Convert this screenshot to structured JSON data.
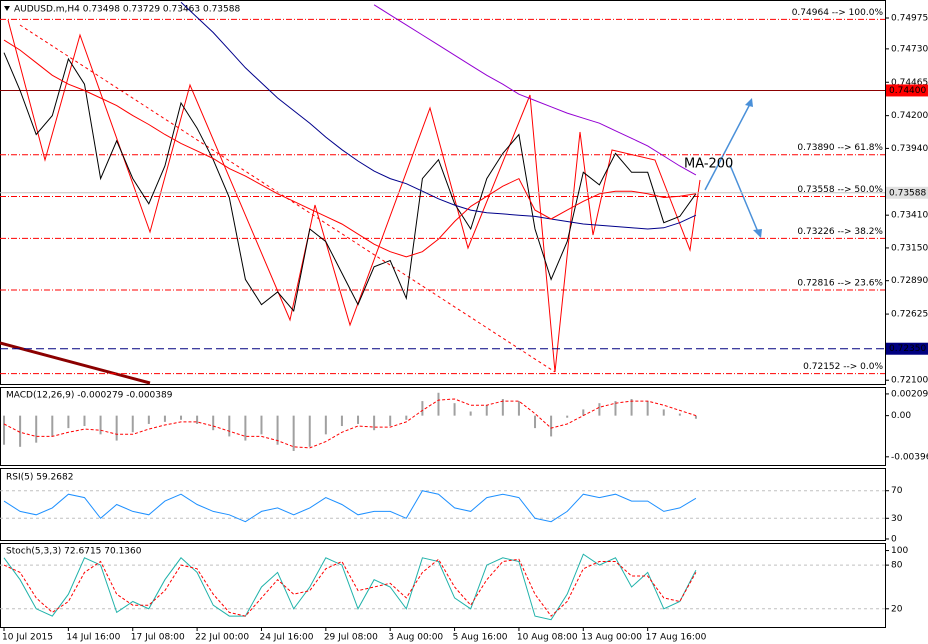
{
  "chart_data": [
    {
      "type": "line",
      "title": "AUDUSD.m,H4  0.73498 0.73729 0.73463 0.73588",
      "x": [
        0,
        4,
        8,
        12,
        16,
        20,
        24,
        28,
        32,
        36,
        40,
        44,
        48,
        52,
        56,
        60,
        64,
        68,
        72,
        76,
        80,
        84,
        88,
        92,
        96,
        100,
        104,
        108,
        112,
        116,
        120,
        124,
        128,
        132,
        136,
        140,
        144,
        148,
        152,
        156,
        160,
        164,
        168,
        172
      ],
      "xlim": [
        -1,
        219
      ],
      "xticks": [
        {
          "value": 0,
          "label": "10 Jul 2015"
        },
        {
          "value": 16,
          "label": "14 Jul 16:00"
        },
        {
          "value": 32,
          "label": "17 Jul 08:00"
        },
        {
          "value": 48,
          "label": "22 Jul 00:00"
        },
        {
          "value": 64,
          "label": "24 Jul 16:00"
        },
        {
          "value": 80,
          "label": "29 Jul 08:00"
        },
        {
          "value": 96,
          "label": "3 Aug 00:00"
        },
        {
          "value": 112,
          "label": "5 Aug 16:00"
        },
        {
          "value": 128,
          "label": "10 Aug 08:00"
        },
        {
          "value": 144,
          "label": "13 Aug 00:00"
        },
        {
          "value": 160,
          "label": "17 Aug 16:00"
        }
      ],
      "ylim": [
        0.7207,
        0.7511
      ],
      "yticks": [
        0.74975,
        {
          "value": 0.7473,
          "label": "0.74730"
        },
        0.74465,
        {
          "value": 0.742,
          "label": "0.74200"
        },
        {
          "value": 0.7394,
          "label": "0.73940"
        },
        {
          "value": 0.7341,
          "label": "0.73410"
        },
        {
          "value": 0.7315,
          "label": "0.73150"
        },
        {
          "value": 0.7289,
          "label": "0.72890"
        },
        0.72625,
        {
          "value": 0.721,
          "label": "0.72100"
        }
      ],
      "series": [
        {
          "color": "#000000",
          "values": [
            0.747,
            0.744,
            0.7405,
            0.742,
            0.7465,
            0.7445,
            0.737,
            0.74,
            0.737,
            0.735,
            0.738,
            0.743,
            0.741,
            0.7385,
            0.7355,
            0.729,
            0.727,
            0.728,
            0.7265,
            0.733,
            0.732,
            0.7295,
            0.727,
            0.73,
            0.7305,
            0.7275,
            0.737,
            0.7385,
            0.735,
            0.733,
            0.737,
            0.739,
            0.7405,
            0.733,
            0.729,
            0.732,
            0.7375,
            0.7365,
            0.739,
            0.7375,
            0.7375,
            0.7335,
            0.734,
            0.7358
          ]
        },
        {
          "color": "#9400d3",
          "values": [
            null,
            null,
            null,
            null,
            null,
            null,
            null,
            null,
            null,
            null,
            null,
            null,
            null,
            null,
            null,
            null,
            null,
            null,
            null,
            null,
            null,
            null,
            null,
            0.7508,
            0.75,
            0.7492,
            0.7484,
            0.7476,
            0.7468,
            0.746,
            0.7452,
            0.7445,
            0.7437,
            0.7432,
            0.7427,
            0.7422,
            0.7418,
            0.7414,
            0.7408,
            0.7402,
            0.7396,
            0.7388,
            0.738,
            0.7373
          ]
        },
        {
          "color": "#00008b",
          "values": [
            null,
            null,
            null,
            null,
            null,
            null,
            null,
            null,
            null,
            null,
            null,
            0.751,
            0.7498,
            0.7486,
            0.7472,
            0.7458,
            0.7446,
            0.7434,
            0.7424,
            0.7414,
            0.7403,
            0.7393,
            0.7384,
            0.7376,
            0.737,
            0.7366,
            0.736,
            0.7354,
            0.7349,
            0.7345,
            0.7343,
            0.7342,
            0.7341,
            0.734,
            0.7338,
            0.7336,
            0.7334,
            0.7333,
            0.7332,
            0.7331,
            0.733,
            0.7331,
            0.7335,
            0.7341
          ]
        },
        {
          "color": "#ff0000",
          "values": [
            0.748,
            0.7472,
            0.7462,
            0.7452,
            0.7445,
            0.744,
            0.7434,
            0.7428,
            0.742,
            0.7413,
            0.7405,
            0.7398,
            0.7392,
            0.7386,
            0.7378,
            0.7372,
            0.7365,
            0.7358,
            0.7352,
            0.7346,
            0.734,
            0.7334,
            0.7326,
            0.7318,
            0.7312,
            0.7308,
            0.7312,
            0.7322,
            0.7336,
            0.7348,
            0.7356,
            0.7364,
            0.737,
            0.7345,
            0.7338,
            0.7345,
            0.7352,
            0.7358,
            0.736,
            0.736,
            0.7358,
            0.7355,
            0.7356,
            0.7358
          ]
        }
      ],
      "fib_levels": [
        {
          "value": 0.74964,
          "label": "0.74964 --> 100.0%"
        },
        {
          "value": 0.7389,
          "label": "0.73890 --> 61.8%"
        },
        {
          "value": 0.73558,
          "label": "0.73558 --> 50.0%"
        },
        {
          "value": 0.73226,
          "label": "0.73226 --> 38.2%"
        },
        {
          "value": 0.72816,
          "label": "0.72816 --> 23.6%"
        },
        {
          "value": 0.72152,
          "label": "0.72152 --> 0.0%"
        }
      ],
      "fib_color": "#ff0000",
      "price_lines": [
        {
          "value": 0.744,
          "label": "0.74400",
          "color": "#ff0000",
          "line_color": "#8b0000",
          "text_color": "#ffffff",
          "style": "solid"
        },
        {
          "value": 0.73588,
          "label": "0.73588",
          "color": "#e0e0e0",
          "line_color": "#c0c0c0",
          "text_color": "#000000",
          "style": "solid"
        },
        {
          "value": 0.7235,
          "label": "0.72350",
          "color": "#000080",
          "line_color": "#000080",
          "text_color": "#ffffff",
          "style": "dashed"
        }
      ],
      "annotation": "MA-200"
    },
    {
      "type": "macd",
      "title": "MACD(12,26,9) -0.000279 -0.000389",
      "ylim": [
        -0.00475,
        0.00266
      ],
      "yticks": [
        0.00209,
        {
          "value": 0,
          "label": "0.00"
        },
        -0.003963
      ],
      "histogram": {
        "color": "#a0a0a0",
        "values": [
          -0.0028,
          -0.003,
          -0.0026,
          -0.002,
          -0.0012,
          -0.001,
          -0.0018,
          -0.0024,
          -0.0016,
          -0.0008,
          -0.0006,
          -0.0004,
          -0.0008,
          -0.0014,
          -0.002,
          -0.0024,
          -0.0018,
          -0.0028,
          -0.0034,
          -0.003,
          -0.0018,
          -0.001,
          -0.0008,
          -0.0014,
          -0.001,
          -0.0004,
          0.0014,
          0.0022,
          0.0012,
          0.0004,
          0.001,
          0.0016,
          0.0014,
          -0.0012,
          -0.002,
          -0.0002,
          0.0006,
          0.0012,
          0.0014,
          0.0016,
          0.0014,
          0.0006,
          0.0002,
          -0.0003
        ]
      },
      "series": [
        {
          "color": "#ff0000",
          "dashed": true,
          "values": [
            -0.0008,
            -0.0016,
            -0.002,
            -0.002,
            -0.0016,
            -0.0013,
            -0.0014,
            -0.0018,
            -0.0018,
            -0.0013,
            -0.0009,
            -0.0006,
            -0.0006,
            -0.001,
            -0.0015,
            -0.002,
            -0.002,
            -0.0024,
            -0.003,
            -0.0031,
            -0.0025,
            -0.0016,
            -0.001,
            -0.0011,
            -0.0011,
            -0.0006,
            0.0005,
            0.0015,
            0.0016,
            0.001,
            0.001,
            0.0014,
            0.0014,
            0.0002,
            -0.0012,
            -0.0008,
            0,
            0.0008,
            0.0012,
            0.0014,
            0.0014,
            0.001,
            0.0005,
            0
          ]
        }
      ]
    },
    {
      "type": "line",
      "title": "RSI(5) 59.2682",
      "ylim": [
        -1.5,
        101.5
      ],
      "yticks": [
        70,
        30,
        0
      ],
      "grid_levels": [
        70,
        30
      ],
      "series": [
        {
          "color": "#1e90ff",
          "values": [
            55,
            40,
            35,
            45,
            65,
            60,
            30,
            50,
            40,
            35,
            55,
            65,
            50,
            40,
            35,
            25,
            40,
            45,
            35,
            45,
            60,
            50,
            35,
            40,
            40,
            30,
            70,
            65,
            45,
            40,
            60,
            65,
            60,
            30,
            25,
            40,
            65,
            60,
            65,
            55,
            55,
            40,
            45,
            59
          ]
        }
      ]
    },
    {
      "type": "line",
      "title": "Stoch(5,3,3) 72.6715 70.1360",
      "ylim": [
        -5,
        109
      ],
      "yticks": [
        100,
        80,
        20
      ],
      "grid_levels": [
        80,
        20
      ],
      "series": [
        {
          "color": "#20b2aa",
          "values": [
            90,
            60,
            20,
            10,
            40,
            90,
            80,
            15,
            30,
            20,
            60,
            90,
            70,
            25,
            10,
            10,
            50,
            70,
            20,
            50,
            90,
            80,
            20,
            60,
            50,
            20,
            90,
            85,
            35,
            20,
            80,
            90,
            85,
            10,
            5,
            40,
            95,
            80,
            90,
            50,
            70,
            20,
            30,
            73
          ]
        },
        {
          "color": "#ff0000",
          "dashed": true,
          "values": [
            80,
            70,
            35,
            15,
            30,
            70,
            85,
            40,
            25,
            25,
            45,
            80,
            75,
            40,
            15,
            10,
            35,
            60,
            40,
            45,
            75,
            85,
            45,
            50,
            55,
            35,
            70,
            88,
            50,
            25,
            60,
            85,
            88,
            40,
            10,
            30,
            75,
            85,
            85,
            65,
            65,
            35,
            30,
            70
          ]
        }
      ]
    }
  ]
}
